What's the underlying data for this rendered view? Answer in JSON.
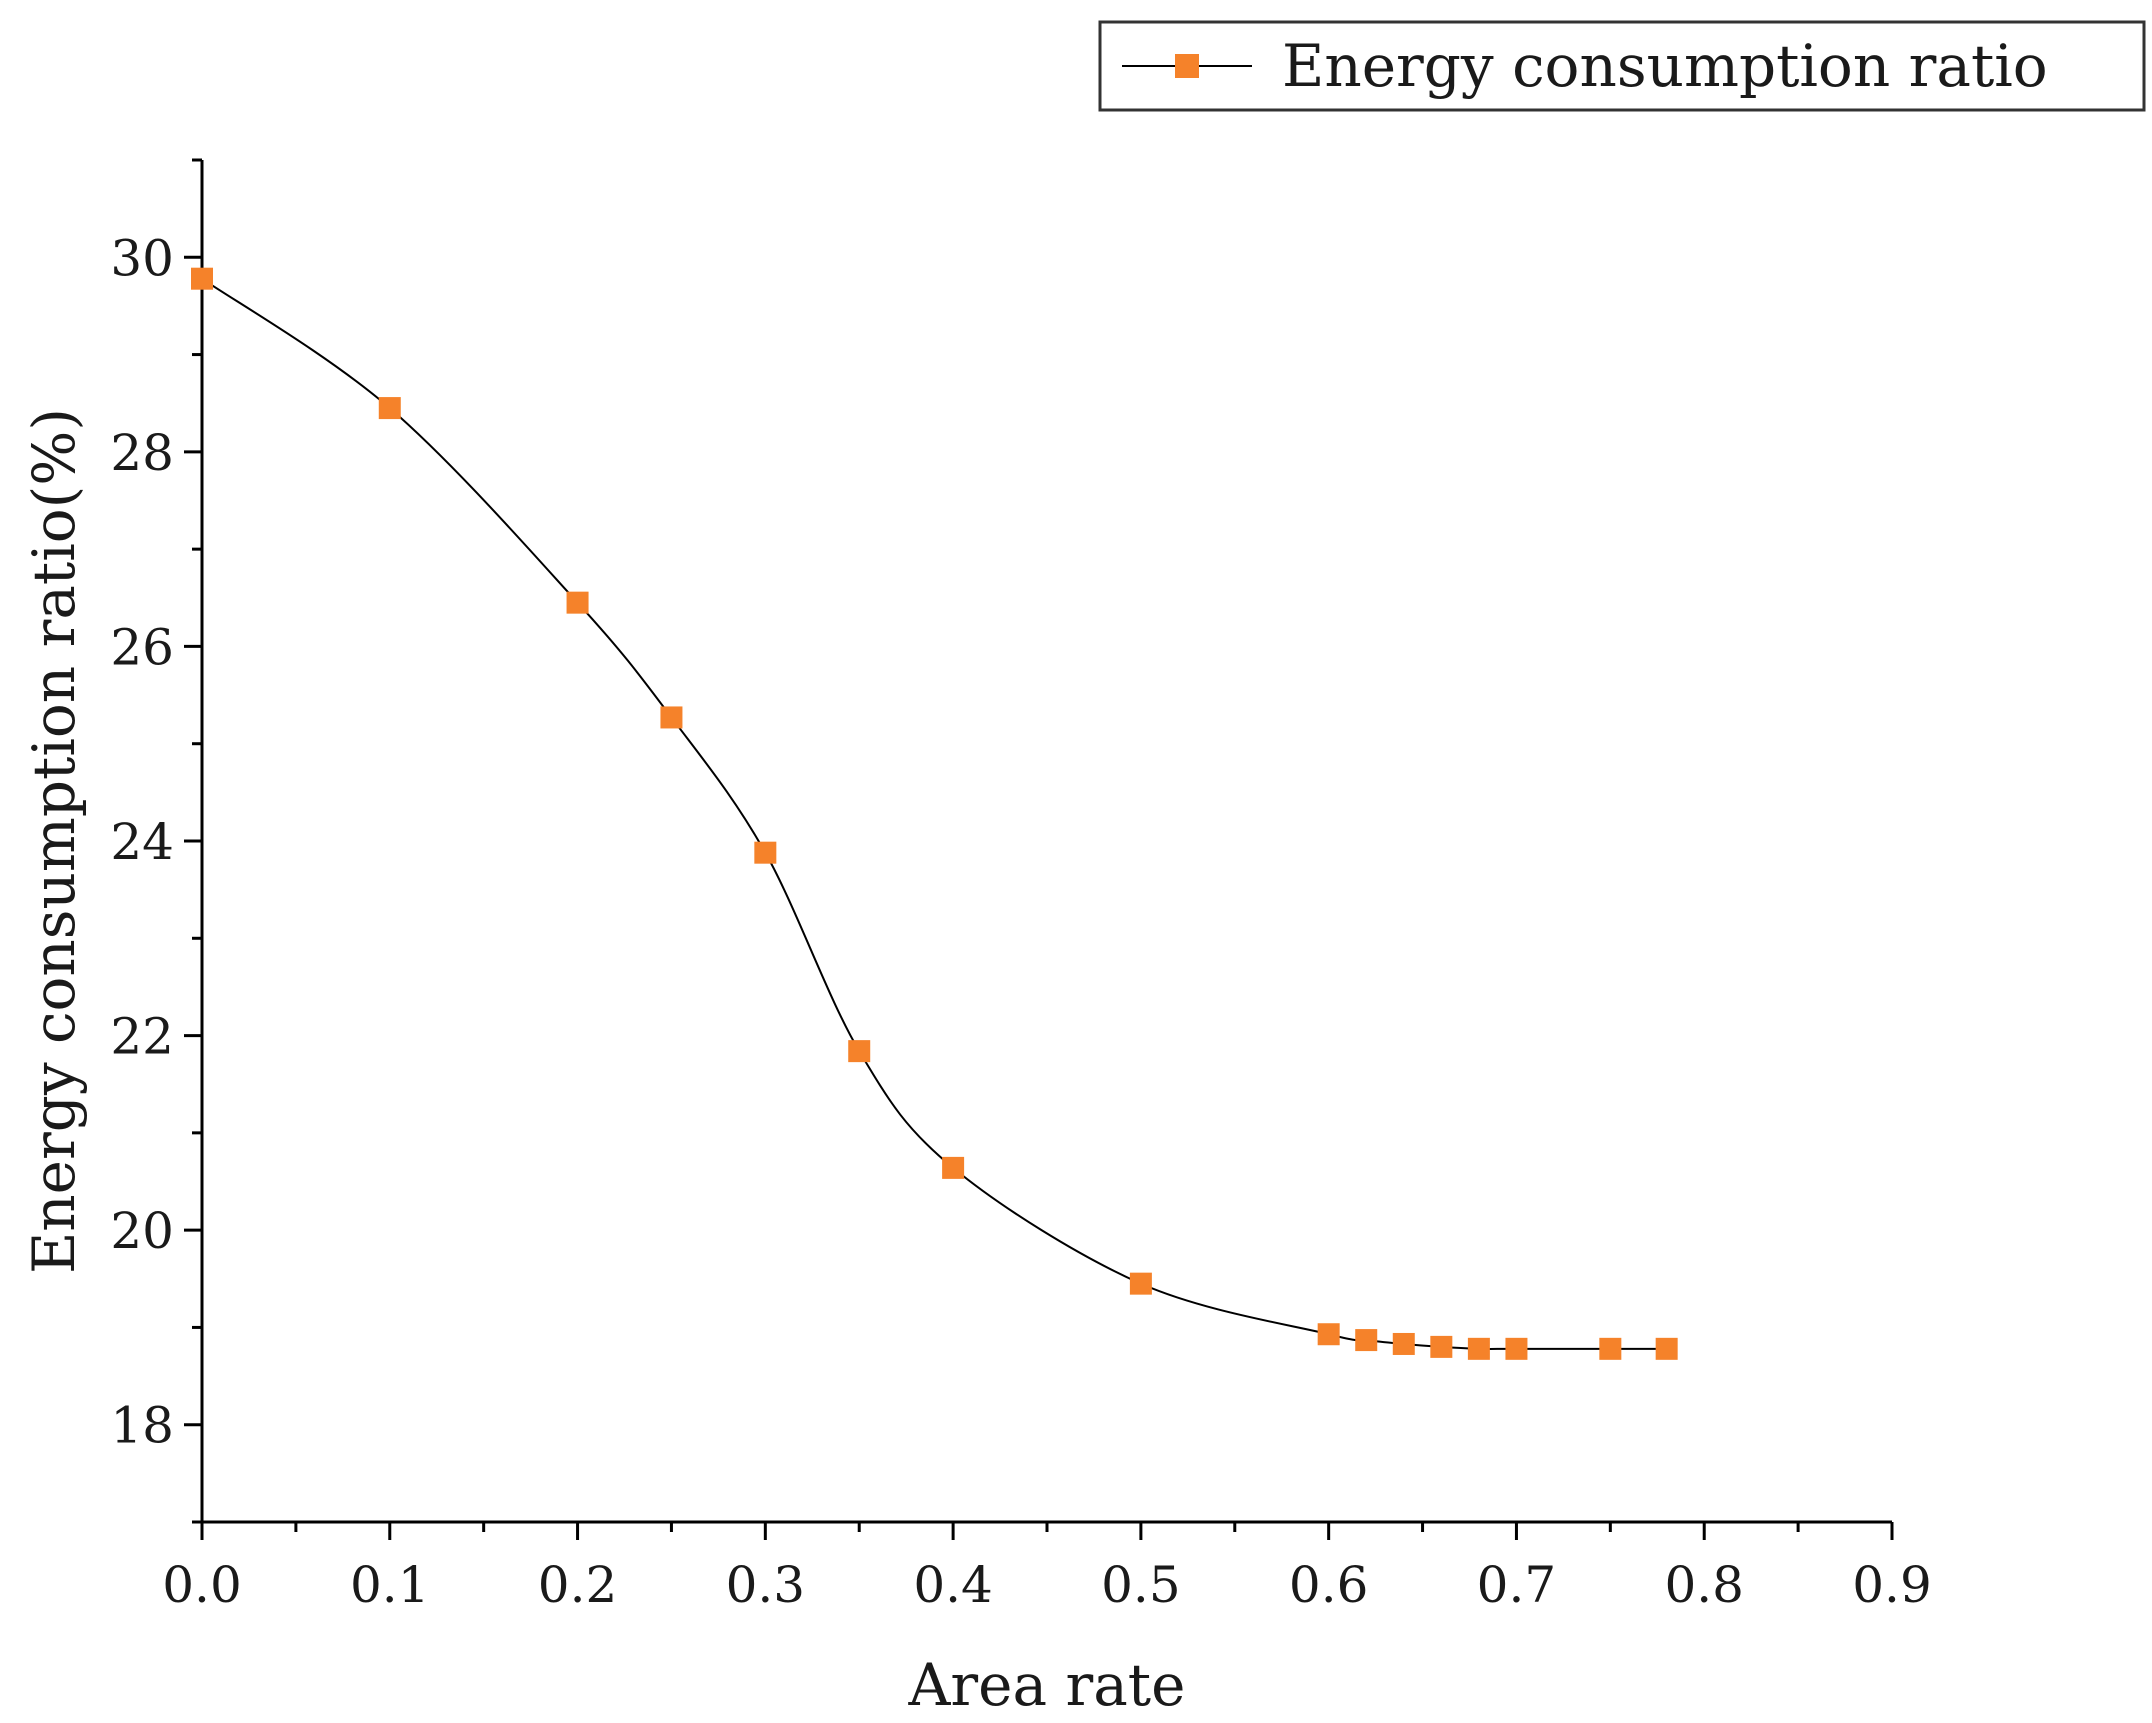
{
  "chart_data": {
    "type": "line",
    "title": "",
    "xlabel": "Area rate",
    "ylabel": "Energy consumption ratio(%)",
    "xlim": [
      0.0,
      0.9
    ],
    "ylim": [
      17,
      31
    ],
    "x_ticks": [
      0.0,
      0.1,
      0.2,
      0.3,
      0.4,
      0.5,
      0.6,
      0.7,
      0.8,
      0.9
    ],
    "x_tick_labels": [
      "0.0",
      "0.1",
      "0.2",
      "0.3",
      "0.4",
      "0.5",
      "0.6",
      "0.7",
      "0.8",
      "0.9"
    ],
    "y_ticks": [
      18,
      20,
      22,
      24,
      26,
      28,
      30
    ],
    "y_tick_labels": [
      "18",
      "20",
      "22",
      "24",
      "26",
      "28",
      "30"
    ],
    "grid": false,
    "legend_position": "top-right",
    "series": [
      {
        "name": "Energy consumption ratio",
        "color": "#f5822a",
        "line_color": "#000000",
        "marker": "square",
        "x": [
          0.0,
          0.1,
          0.2,
          0.25,
          0.3,
          0.35,
          0.4,
          0.5,
          0.6,
          0.62,
          0.64,
          0.66,
          0.68,
          0.7,
          0.75,
          0.78
        ],
        "y": [
          29.78,
          28.45,
          26.45,
          25.27,
          23.88,
          21.84,
          20.64,
          19.45,
          18.93,
          18.87,
          18.83,
          18.8,
          18.78,
          18.78,
          18.78,
          18.78
        ]
      }
    ]
  }
}
